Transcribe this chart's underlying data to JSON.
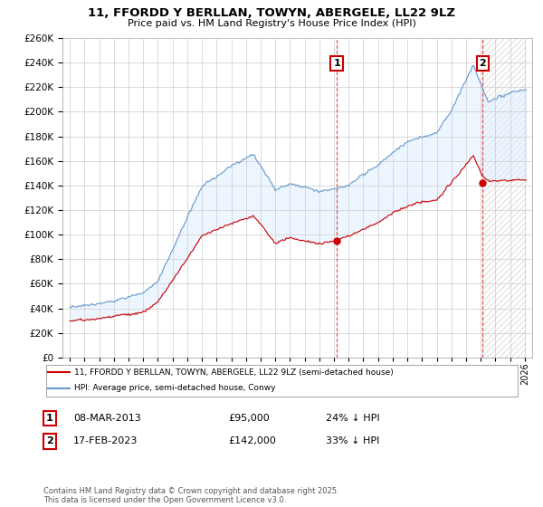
{
  "title": "11, FFORDD Y BERLLAN, TOWYN, ABERGELE, LL22 9LZ",
  "subtitle": "Price paid vs. HM Land Registry's House Price Index (HPI)",
  "legend_line1": "11, FFORDD Y BERLLAN, TOWYN, ABERGELE, LL22 9LZ (semi-detached house)",
  "legend_line2": "HPI: Average price, semi-detached house, Conwy",
  "footnote": "Contains HM Land Registry data © Crown copyright and database right 2025.\nThis data is licensed under the Open Government Licence v3.0.",
  "annotation1_label": "1",
  "annotation1_date": "08-MAR-2013",
  "annotation1_price": "£95,000",
  "annotation1_hpi": "24% ↓ HPI",
  "annotation2_label": "2",
  "annotation2_date": "17-FEB-2023",
  "annotation2_price": "£142,000",
  "annotation2_hpi": "33% ↓ HPI",
  "sale1_year": 2013.19,
  "sale1_price": 95000,
  "sale2_year": 2023.12,
  "sale2_price": 142000,
  "line_color_red": "#cc0000",
  "line_color_blue": "#6699cc",
  "fill_color_blue": "#ddeeff",
  "vline_color": "#cc0000",
  "background_color": "#ffffff",
  "grid_color": "#cccccc",
  "ylim": [
    0,
    260000
  ],
  "xlim_start": 1994.5,
  "xlim_end": 2026.5
}
